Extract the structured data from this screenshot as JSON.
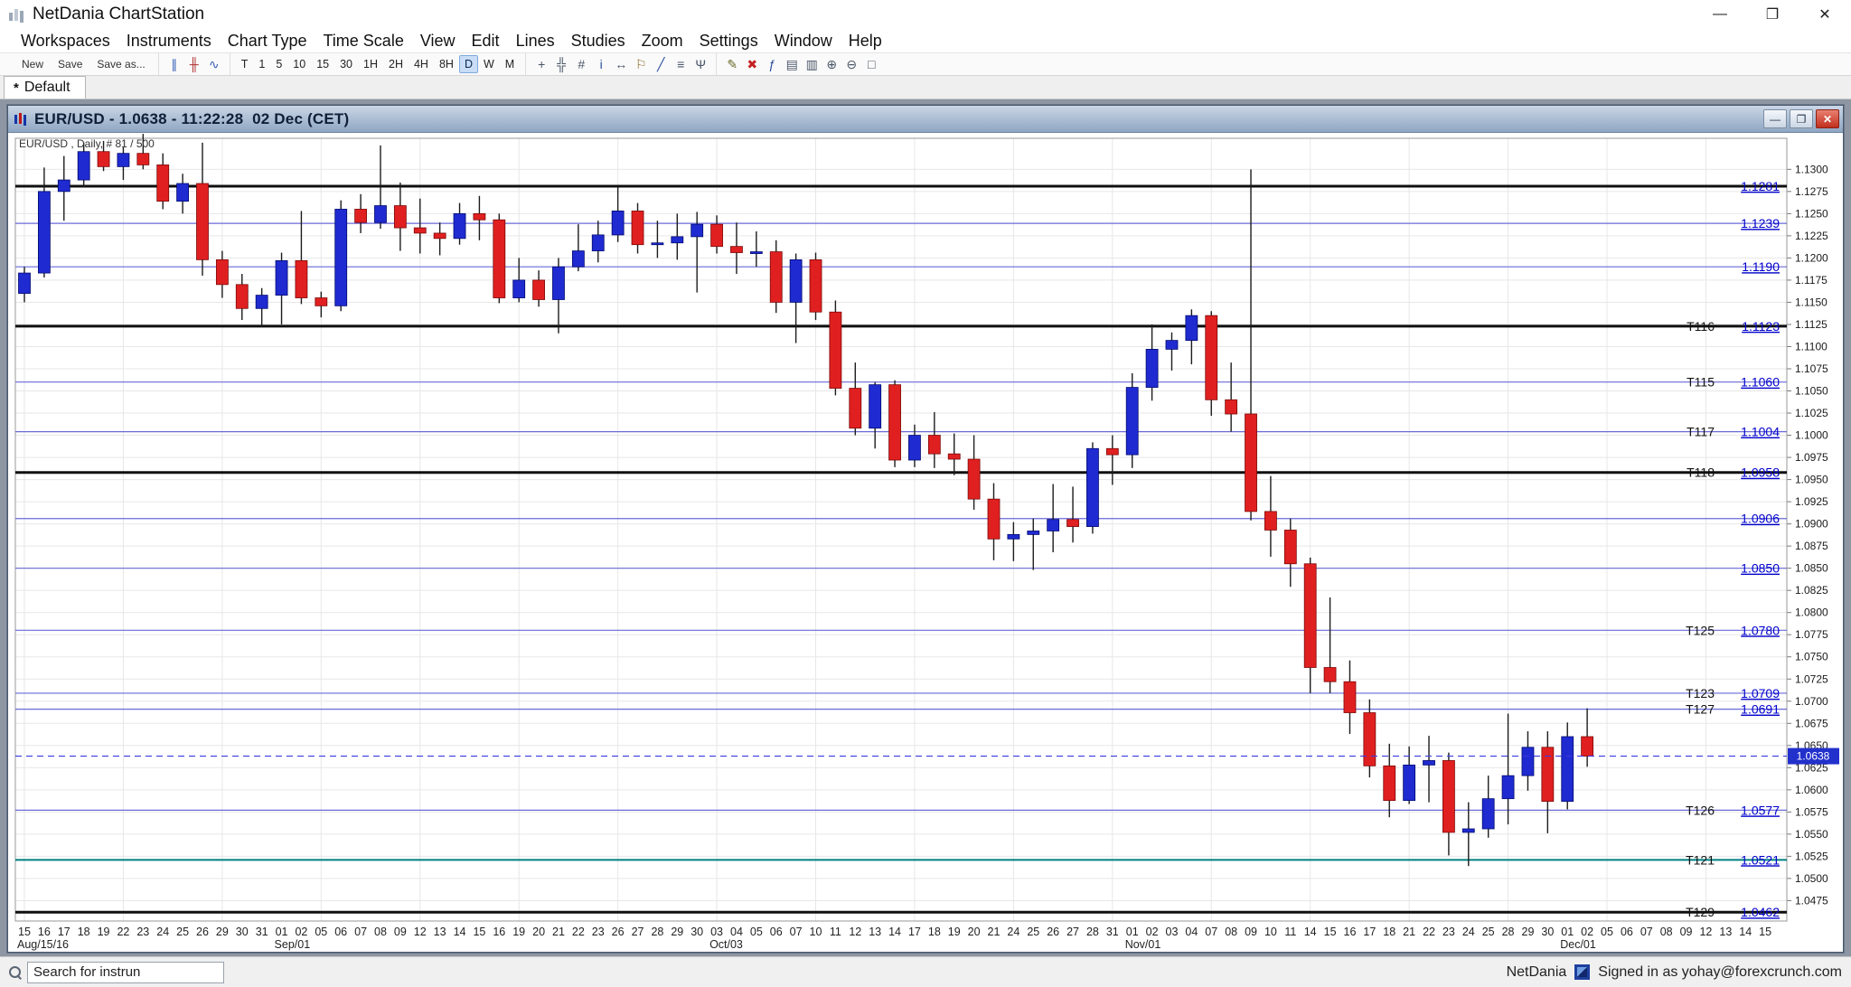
{
  "window": {
    "title": "NetDania ChartStation",
    "controls": [
      {
        "name": "minimize-button",
        "glyph": "—"
      },
      {
        "name": "maximize-button",
        "glyph": "❐"
      },
      {
        "name": "close-button",
        "glyph": "✕"
      }
    ]
  },
  "menu": {
    "items": [
      "Workspaces",
      "Instruments",
      "Chart Type",
      "Time Scale",
      "View",
      "Edit",
      "Lines",
      "Studies",
      "Zoom",
      "Settings",
      "Window",
      "Help"
    ]
  },
  "toolbar": {
    "file_buttons": [
      "New",
      "Save",
      "Save as..."
    ],
    "chart_mode_icons": [
      {
        "name": "pause-icon",
        "glyph": "∥",
        "color": "#3a62b8"
      },
      {
        "name": "candlestick-icon",
        "glyph": "╫",
        "color": "#b03030"
      },
      {
        "name": "line-chart-icon",
        "glyph": "∿",
        "color": "#3a62b8"
      }
    ],
    "timeframes": {
      "options": [
        "T",
        "1",
        "5",
        "10",
        "15",
        "30",
        "1H",
        "2H",
        "4H",
        "8H",
        "D",
        "W",
        "M"
      ],
      "active": "D"
    },
    "tool_icons": [
      {
        "name": "crosshair-icon",
        "glyph": "+",
        "color": "#4a5668"
      },
      {
        "name": "grid-icon",
        "glyph": "╬",
        "color": "#4a5668"
      },
      {
        "name": "snap-grid-icon",
        "glyph": "#",
        "color": "#4a5668"
      },
      {
        "name": "info-icon",
        "glyph": "i",
        "color": "#2a4f9a"
      },
      {
        "name": "expand-horizontal-icon",
        "glyph": "↔",
        "color": "#4a5668"
      },
      {
        "name": "alert-icon",
        "glyph": "⚐",
        "color": "#8a6a20"
      },
      {
        "name": "trendline-icon",
        "glyph": "╱",
        "color": "#2a4f9a"
      },
      {
        "name": "fibonacci-icon",
        "glyph": "≡",
        "color": "#4a5668"
      },
      {
        "name": "pitchfork-icon",
        "glyph": "Ψ",
        "color": "#4a5668"
      }
    ],
    "edit_icons": [
      {
        "name": "pencil-icon",
        "glyph": "✎",
        "color": "#6a6a2a"
      },
      {
        "name": "delete-icon",
        "glyph": "✖",
        "color": "#c42222"
      },
      {
        "name": "studies-icon",
        "glyph": "ƒ",
        "color": "#2a4f9a"
      },
      {
        "name": "print-icon",
        "glyph": "▤",
        "color": "#4a5668"
      },
      {
        "name": "print-preview-icon",
        "glyph": "▥",
        "color": "#4a5668"
      },
      {
        "name": "zoom-in-icon",
        "glyph": "⊕",
        "color": "#4a5668"
      },
      {
        "name": "zoom-out-icon",
        "glyph": "⊖",
        "color": "#4a5668"
      },
      {
        "name": "zoom-box-icon",
        "glyph": "□",
        "color": "#4a5668"
      }
    ]
  },
  "tabbar": {
    "dirty_marker": "*",
    "active_tab": "Default"
  },
  "chart_window": {
    "title": "EUR/USD - 1.0638 - 11:22:28  02 Dec (CET)",
    "controls": [
      {
        "name": "chart-minimize-button",
        "glyph": "—"
      },
      {
        "name": "chart-restore-button",
        "glyph": "❐"
      },
      {
        "name": "chart-close-button",
        "glyph": "✕"
      }
    ]
  },
  "chart_data": {
    "type": "candlestick",
    "symbol": "EUR/USD",
    "timeframe": "Daily",
    "header": "EUR/USD , Daily, # 81 / 500",
    "y_axis": {
      "min": 1.0475,
      "max": 1.13,
      "step": 0.0025,
      "render_min": 1.0452,
      "render_max": 1.1335
    },
    "slots": 89,
    "grid_every": 5,
    "last_price": 1.0638,
    "colors": {
      "up": "#1f2bd0",
      "up_edge": "#000a70",
      "down": "#e02020",
      "down_edge": "#7c0808",
      "wick": "#1c1c1c",
      "grid": "#e7e7e7",
      "border": "#9a9a9a",
      "minor_line": "#6a6ad8",
      "major_line": "#101010",
      "teal_line": "#008080",
      "price_label": "#0000cc",
      "level_label": "#111111",
      "last_line": "#3a3ae0",
      "last_badge": "#2230cc",
      "axis_text": "#1a1a1a"
    },
    "levels": [
      {
        "price": 1.1281,
        "style": "major",
        "label": ""
      },
      {
        "price": 1.1239,
        "style": "minor",
        "label": ""
      },
      {
        "price": 1.119,
        "style": "minor",
        "label": ""
      },
      {
        "price": 1.1123,
        "style": "major",
        "label": "T116"
      },
      {
        "price": 1.106,
        "style": "minor",
        "label": "T115"
      },
      {
        "price": 1.1004,
        "style": "minor",
        "label": "T117"
      },
      {
        "price": 1.0958,
        "style": "major",
        "label": "T118"
      },
      {
        "price": 1.0906,
        "style": "minor",
        "label": ""
      },
      {
        "price": 1.085,
        "style": "minor",
        "label": ""
      },
      {
        "price": 1.078,
        "style": "minor",
        "label": "T125"
      },
      {
        "price": 1.0709,
        "style": "minor",
        "label": "T123"
      },
      {
        "price": 1.0691,
        "style": "minor",
        "label": "T127"
      },
      {
        "price": 1.0577,
        "style": "minor",
        "label": "T126"
      },
      {
        "price": 1.0521,
        "style": "teal",
        "label": "T121"
      },
      {
        "price": 1.0462,
        "style": "major",
        "label": "T129"
      }
    ],
    "months": [
      {
        "slot": 0,
        "label": "Aug/15/16"
      },
      {
        "slot": 13,
        "label": "Sep/01"
      },
      {
        "slot": 35,
        "label": "Oct/03"
      },
      {
        "slot": 56,
        "label": "Nov/01"
      },
      {
        "slot": 78,
        "label": "Dec/01"
      }
    ],
    "future_dates": [
      "05",
      "06",
      "07",
      "08",
      "09",
      "12",
      "13",
      "14",
      "15"
    ],
    "candles": [
      [
        "15",
        1.116,
        1.119,
        1.115,
        1.1183
      ],
      [
        "16",
        1.1183,
        1.1302,
        1.1178,
        1.1275
      ],
      [
        "17",
        1.1275,
        1.1315,
        1.1242,
        1.1288
      ],
      [
        "18",
        1.1288,
        1.133,
        1.128,
        1.132
      ],
      [
        "19",
        1.132,
        1.1332,
        1.1298,
        1.1303
      ],
      [
        "22",
        1.1303,
        1.1325,
        1.1288,
        1.1318
      ],
      [
        "23",
        1.1318,
        1.134,
        1.13,
        1.1305
      ],
      [
        "24",
        1.1305,
        1.1318,
        1.1255,
        1.1264
      ],
      [
        "25",
        1.1264,
        1.1295,
        1.125,
        1.1284
      ],
      [
        "26",
        1.1284,
        1.133,
        1.118,
        1.1198
      ],
      [
        "29",
        1.1198,
        1.1208,
        1.1155,
        1.117
      ],
      [
        "30",
        1.117,
        1.1182,
        1.113,
        1.1143
      ],
      [
        "31",
        1.1143,
        1.1166,
        1.1122,
        1.1158
      ],
      [
        "01",
        1.1158,
        1.1206,
        1.1125,
        1.1197
      ],
      [
        "02",
        1.1197,
        1.1253,
        1.1148,
        1.1155
      ],
      [
        "05",
        1.1155,
        1.1162,
        1.1133,
        1.1146
      ],
      [
        "06",
        1.1146,
        1.1265,
        1.114,
        1.1255
      ],
      [
        "07",
        1.1255,
        1.1272,
        1.1228,
        1.124
      ],
      [
        "08",
        1.124,
        1.1327,
        1.1233,
        1.1259
      ],
      [
        "09",
        1.1259,
        1.1285,
        1.1208,
        1.1234
      ],
      [
        "12",
        1.1234,
        1.1267,
        1.1205,
        1.1228
      ],
      [
        "13",
        1.1228,
        1.124,
        1.1203,
        1.1222
      ],
      [
        "14",
        1.1222,
        1.1262,
        1.1215,
        1.125
      ],
      [
        "15",
        1.125,
        1.127,
        1.122,
        1.1243
      ],
      [
        "16",
        1.1243,
        1.125,
        1.1149,
        1.1155
      ],
      [
        "19",
        1.1155,
        1.12,
        1.115,
        1.1175
      ],
      [
        "20",
        1.1175,
        1.1186,
        1.1145,
        1.1153
      ],
      [
        "21",
        1.1153,
        1.12,
        1.1115,
        1.119
      ],
      [
        "22",
        1.119,
        1.1238,
        1.1185,
        1.1208
      ],
      [
        "23",
        1.1208,
        1.1242,
        1.1195,
        1.1226
      ],
      [
        "26",
        1.1226,
        1.128,
        1.1218,
        1.1253
      ],
      [
        "27",
        1.1253,
        1.1262,
        1.1205,
        1.1215
      ],
      [
        "28",
        1.1215,
        1.1242,
        1.12,
        1.1217
      ],
      [
        "29",
        1.1217,
        1.125,
        1.1198,
        1.1224
      ],
      [
        "30",
        1.1224,
        1.1252,
        1.1161,
        1.1238
      ],
      [
        "03",
        1.1238,
        1.1248,
        1.1205,
        1.1213
      ],
      [
        "04",
        1.1213,
        1.124,
        1.1182,
        1.1206
      ],
      [
        "05",
        1.1206,
        1.123,
        1.119,
        1.1207
      ],
      [
        "06",
        1.1207,
        1.122,
        1.1138,
        1.115
      ],
      [
        "07",
        1.115,
        1.1205,
        1.1104,
        1.1198
      ],
      [
        "10",
        1.1198,
        1.1206,
        1.113,
        1.1139
      ],
      [
        "11",
        1.1139,
        1.1152,
        1.1045,
        1.1053
      ],
      [
        "12",
        1.1053,
        1.1082,
        1.1,
        1.1008
      ],
      [
        "13",
        1.1008,
        1.106,
        1.0985,
        1.1057
      ],
      [
        "14",
        1.1057,
        1.1062,
        1.0964,
        1.0972
      ],
      [
        "17",
        1.0972,
        1.1012,
        1.0964,
        1.1
      ],
      [
        "18",
        1.1,
        1.1026,
        1.0963,
        1.0979
      ],
      [
        "19",
        1.0979,
        1.1002,
        1.0955,
        1.0973
      ],
      [
        "20",
        1.0973,
        1.1,
        1.0916,
        1.0928
      ],
      [
        "21",
        1.0928,
        1.0946,
        1.0859,
        1.0883
      ],
      [
        "24",
        1.0883,
        1.0902,
        1.0858,
        1.0888
      ],
      [
        "25",
        1.0888,
        1.0906,
        1.0848,
        1.0892
      ],
      [
        "26",
        1.0892,
        1.0945,
        1.0868,
        1.0905
      ],
      [
        "27",
        1.0905,
        1.0942,
        1.0879,
        1.0897
      ],
      [
        "28",
        1.0897,
        1.0992,
        1.0889,
        1.0985
      ],
      [
        "31",
        1.0985,
        1.1,
        1.0944,
        1.0978
      ],
      [
        "01",
        1.0978,
        1.107,
        1.0963,
        1.1054
      ],
      [
        "02",
        1.1054,
        1.1125,
        1.1039,
        1.1097
      ],
      [
        "03",
        1.1097,
        1.1116,
        1.1073,
        1.1107
      ],
      [
        "04",
        1.1107,
        1.1142,
        1.108,
        1.1135
      ],
      [
        "07",
        1.1135,
        1.114,
        1.1022,
        1.104
      ],
      [
        "08",
        1.104,
        1.1082,
        1.1004,
        1.1024
      ],
      [
        "09",
        1.1024,
        1.13,
        1.0904,
        1.0914
      ],
      [
        "10",
        1.0914,
        1.0954,
        1.0863,
        1.0893
      ],
      [
        "11",
        1.0893,
        1.0906,
        1.0829,
        1.0855
      ],
      [
        "14",
        1.0855,
        1.0862,
        1.0709,
        1.0738
      ],
      [
        "15",
        1.0738,
        1.0817,
        1.0709,
        1.0722
      ],
      [
        "16",
        1.0722,
        1.0746,
        1.0663,
        1.0687
      ],
      [
        "17",
        1.0687,
        1.0702,
        1.0614,
        1.0627
      ],
      [
        "18",
        1.0627,
        1.0652,
        1.0569,
        1.0588
      ],
      [
        "21",
        1.0588,
        1.0649,
        1.0584,
        1.0628
      ],
      [
        "22",
        1.0628,
        1.0661,
        1.0586,
        1.0633
      ],
      [
        "23",
        1.0633,
        1.0642,
        1.0526,
        1.0552
      ],
      [
        "24",
        1.0552,
        1.0586,
        1.0514,
        1.0556
      ],
      [
        "25",
        1.0556,
        1.0616,
        1.0546,
        1.059
      ],
      [
        "28",
        1.059,
        1.0686,
        1.0561,
        1.0616
      ],
      [
        "29",
        1.0616,
        1.0666,
        1.0599,
        1.0648
      ],
      [
        "30",
        1.0648,
        1.0666,
        1.0551,
        1.0587
      ],
      [
        "01",
        1.0587,
        1.0676,
        1.0578,
        1.066
      ],
      [
        "02",
        1.066,
        1.0692,
        1.0626,
        1.0638
      ]
    ]
  },
  "statusbar": {
    "search_value": "Search for instrun",
    "brand": "NetDania",
    "signed_in": "Signed in as yohay@forexcrunch.com"
  }
}
